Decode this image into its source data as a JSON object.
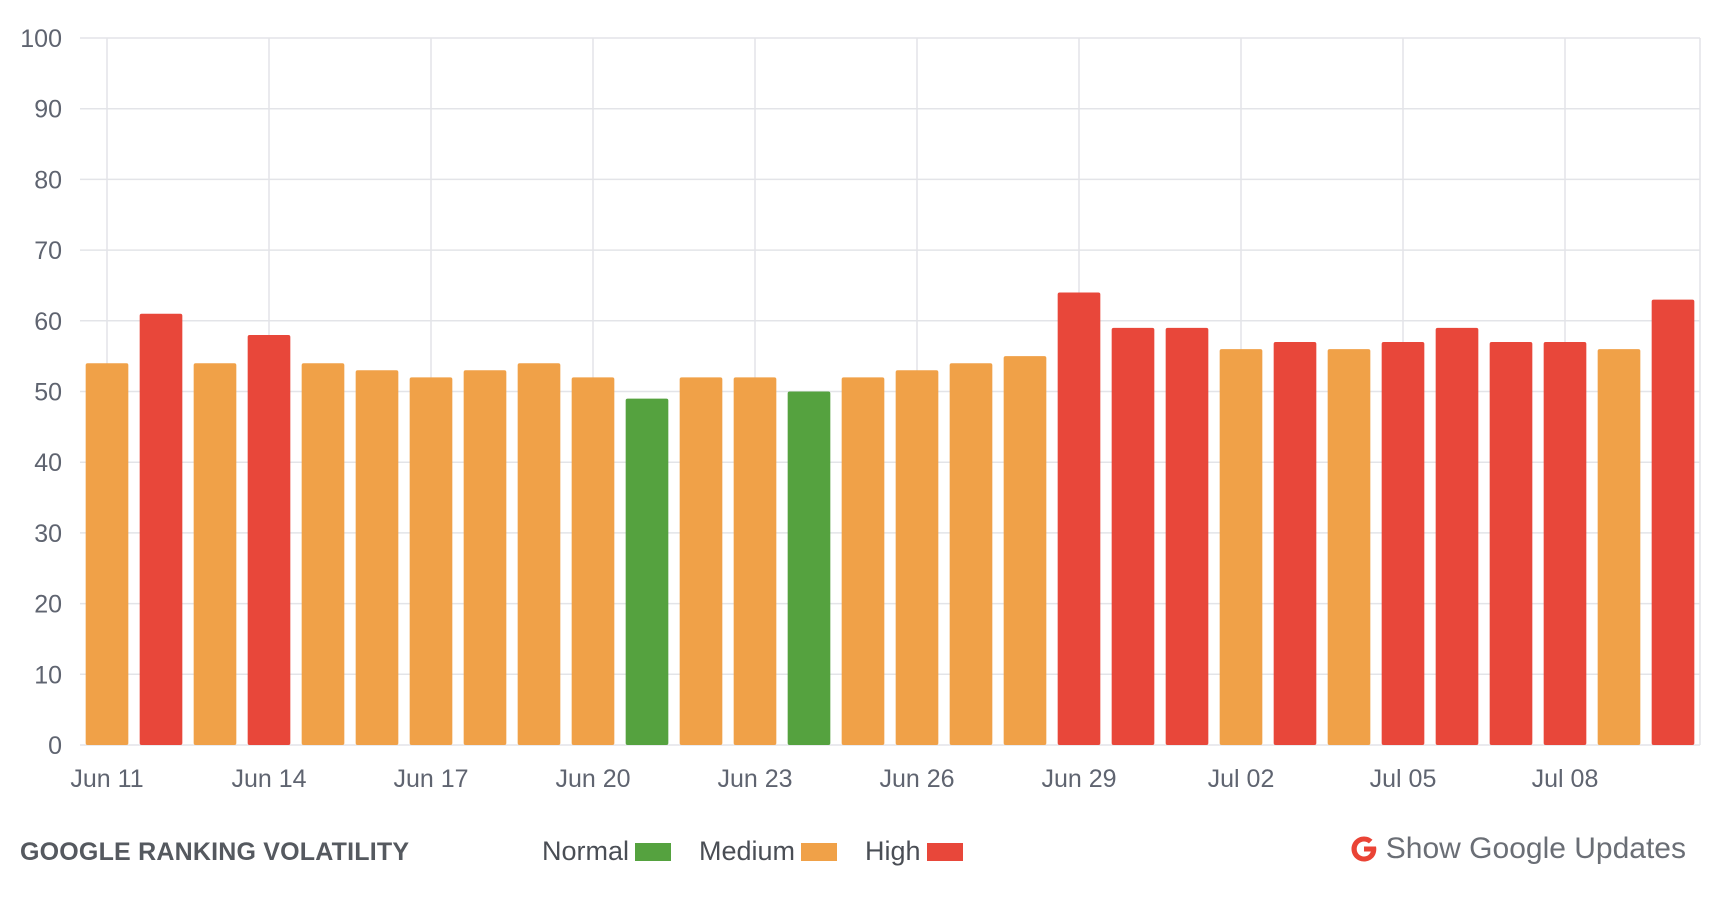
{
  "chart_data": {
    "type": "bar",
    "title": "GOOGLE RANKING VOLATILITY",
    "xlabel": "",
    "ylabel": "",
    "ylim": [
      0,
      100
    ],
    "yticks": [
      0,
      10,
      20,
      30,
      40,
      50,
      60,
      70,
      80,
      90,
      100
    ],
    "grid": true,
    "categories": [
      "Jun 11",
      "Jun 12",
      "Jun 13",
      "Jun 14",
      "Jun 15",
      "Jun 16",
      "Jun 17",
      "Jun 18",
      "Jun 19",
      "Jun 20",
      "Jun 21",
      "Jun 22",
      "Jun 23",
      "Jun 24",
      "Jun 25",
      "Jun 26",
      "Jun 27",
      "Jun 28",
      "Jun 29",
      "Jun 30",
      "Jul 01",
      "Jul 02",
      "Jul 03",
      "Jul 04",
      "Jul 05",
      "Jul 06",
      "Jul 07",
      "Jul 08",
      "Jul 09",
      "Jul 10"
    ],
    "xtick_labels": [
      "Jun 11",
      "Jun 14",
      "Jun 17",
      "Jun 20",
      "Jun 23",
      "Jun 26",
      "Jun 29",
      "Jul 02",
      "Jul 05",
      "Jul 08"
    ],
    "values": [
      54,
      61,
      54,
      58,
      54,
      53,
      52,
      53,
      54,
      52,
      49,
      52,
      52,
      50,
      52,
      53,
      54,
      55,
      64,
      59,
      59,
      56,
      57,
      56,
      57,
      59,
      57,
      57,
      56,
      63
    ],
    "levels": [
      "medium",
      "high",
      "medium",
      "high",
      "medium",
      "medium",
      "medium",
      "medium",
      "medium",
      "medium",
      "normal",
      "medium",
      "medium",
      "normal",
      "medium",
      "medium",
      "medium",
      "medium",
      "high",
      "high",
      "high",
      "medium",
      "high",
      "medium",
      "high",
      "high",
      "high",
      "high",
      "medium",
      "high"
    ],
    "legend_position": "bottom-center"
  },
  "colors": {
    "normal": "#55a23f",
    "medium": "#f0a148",
    "high": "#e8473a",
    "grid": "#e3e4e8",
    "google_red": "#ea4335"
  },
  "footer": {
    "title": "GOOGLE RANKING VOLATILITY",
    "legend": [
      {
        "label": "Normal",
        "level": "normal"
      },
      {
        "label": "Medium",
        "level": "medium"
      },
      {
        "label": "High",
        "level": "high"
      }
    ],
    "show_updates_label": "Show Google Updates",
    "updates_icon": "google-g-icon"
  }
}
